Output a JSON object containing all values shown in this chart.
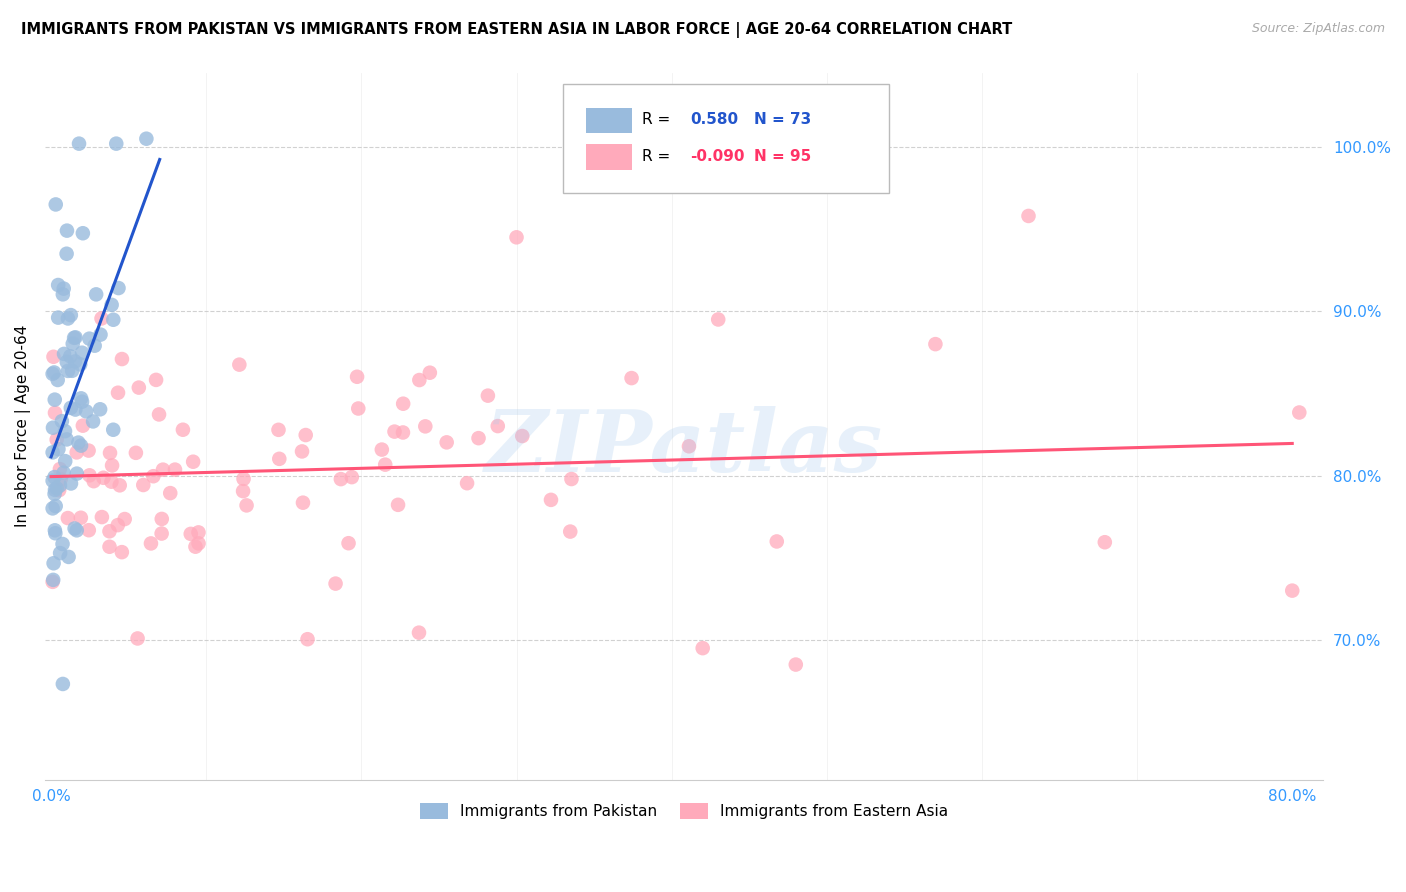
{
  "title": "IMMIGRANTS FROM PAKISTAN VS IMMIGRANTS FROM EASTERN ASIA IN LABOR FORCE | AGE 20-64 CORRELATION CHART",
  "source": "Source: ZipAtlas.com",
  "ylabel": "In Labor Force | Age 20-64",
  "ylim": [
    0.615,
    1.045
  ],
  "xlim": [
    -0.004,
    0.82
  ],
  "legend1_R": "0.580",
  "legend1_N": "73",
  "legend2_R": "-0.090",
  "legend2_N": "95",
  "blue_color": "#99BBDD",
  "pink_color": "#FFAABB",
  "blue_line_color": "#2255CC",
  "pink_line_color": "#FF5577",
  "watermark": "ZIPatlas",
  "ytick_positions": [
    0.7,
    0.8,
    0.9,
    1.0
  ],
  "ytick_labels": [
    "70.0%",
    "80.0%",
    "90.0%",
    "100.0%"
  ],
  "xtick_positions": [
    0.0,
    0.8
  ],
  "xtick_labels": [
    "0.0%",
    "80.0%"
  ]
}
